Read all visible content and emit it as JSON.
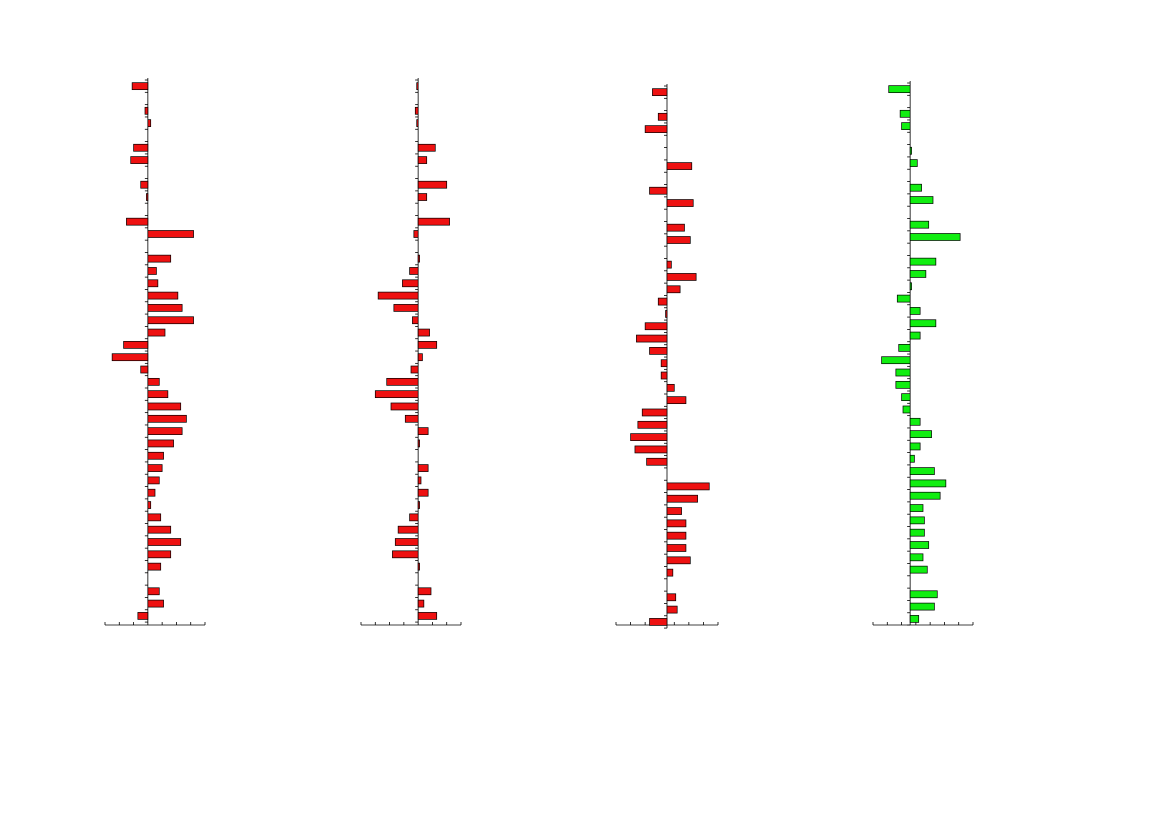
{
  "chart_data": [
    {
      "type": "bar",
      "orientation": "horizontal",
      "color": "#ee1111",
      "xlim": [
        -3,
        4
      ],
      "xticks": [
        -3,
        -2,
        -1,
        0,
        1,
        2,
        3,
        4
      ],
      "categories": [
        null,
        null,
        null,
        null,
        null,
        null,
        null,
        null,
        null,
        null,
        null,
        null,
        null,
        null,
        null,
        null,
        null,
        null,
        null,
        null,
        null,
        null,
        null,
        null,
        null,
        null,
        null,
        null,
        null,
        null,
        null,
        null,
        null,
        null,
        null,
        null,
        null,
        null,
        null,
        null,
        null,
        null,
        null,
        null
      ],
      "values": [
        -1.1,
        0,
        -0.2,
        0.2,
        0,
        -1.0,
        -1.2,
        0,
        -0.5,
        -0.1,
        0,
        -1.5,
        3.2,
        0,
        1.6,
        0.6,
        0.7,
        2.1,
        2.4,
        3.2,
        1.2,
        -1.7,
        -2.5,
        -0.5,
        0.8,
        1.4,
        2.3,
        2.7,
        2.4,
        1.8,
        1.1,
        1.0,
        0.8,
        0.5,
        0.2,
        0.9,
        1.6,
        2.3,
        1.6,
        0.9,
        0,
        0.8,
        1.1,
        -0.7
      ]
    },
    {
      "type": "bar",
      "orientation": "horizontal",
      "color": "#ee1111",
      "xlim": [
        -4,
        3
      ],
      "xticks": [
        -4,
        -3,
        -2,
        -1,
        0,
        1,
        2,
        3
      ],
      "categories": [
        null,
        null,
        null,
        null,
        null,
        null,
        null,
        null,
        null,
        null,
        null,
        null,
        null,
        null,
        null,
        null,
        null,
        null,
        null,
        null,
        null,
        null,
        null,
        null,
        null,
        null,
        null,
        null,
        null,
        null,
        null,
        null,
        null,
        null,
        null,
        null,
        null,
        null,
        null,
        null,
        null,
        null,
        null,
        null
      ],
      "values": [
        -0.1,
        0,
        -0.2,
        -0.1,
        0,
        1.2,
        0.6,
        0,
        2.0,
        0.6,
        0,
        2.2,
        -0.3,
        0,
        0.1,
        -0.6,
        -1.1,
        -2.8,
        -1.7,
        -0.4,
        0.8,
        1.3,
        0.3,
        -0.5,
        -2.2,
        -3.0,
        -1.9,
        -0.9,
        0.7,
        0.1,
        0,
        0.7,
        0.2,
        0.7,
        0.1,
        -0.6,
        -1.4,
        -1.6,
        -1.8,
        0.1,
        0,
        0.9,
        0.4,
        1.3
      ]
    },
    {
      "type": "bar",
      "orientation": "horizontal",
      "color": "#ee1111",
      "xlim": [
        -3.5,
        3.5
      ],
      "xticks": [
        -3.5,
        -2.5,
        -1.5,
        -0.5,
        0.5,
        1.5,
        2.5,
        3.5
      ],
      "categories": [
        null,
        null,
        null,
        null,
        null,
        null,
        null,
        null,
        null,
        null,
        null,
        null,
        null,
        null,
        null,
        null,
        null,
        null,
        null,
        null,
        null,
        null,
        null,
        null,
        null,
        null,
        null,
        null,
        null,
        null,
        null,
        null,
        null,
        null,
        null,
        null,
        null,
        null,
        null,
        null,
        null,
        null,
        null,
        null
      ],
      "values": [
        -1.0,
        0,
        -0.6,
        -1.5,
        0,
        0,
        1.7,
        0,
        -1.2,
        1.8,
        0,
        1.2,
        1.6,
        0,
        0.3,
        2.0,
        0.9,
        -0.6,
        -0.1,
        -1.5,
        -2.1,
        -1.2,
        -0.4,
        -0.4,
        0.5,
        1.3,
        -1.7,
        -2.0,
        -2.5,
        -2.2,
        -1.4,
        0,
        2.9,
        2.1,
        1.0,
        1.3,
        1.3,
        1.3,
        1.6,
        0.4,
        0,
        0.6,
        0.7,
        -1.2
      ]
    },
    {
      "type": "bar",
      "orientation": "horizontal",
      "color": "#11ee11",
      "xlim": [
        -2.6,
        4.4
      ],
      "xticks": [
        -2.6,
        -1.6,
        -0.6,
        0.4,
        1.4,
        2.4,
        3.4,
        4.4
      ],
      "categories": [
        null,
        null,
        null,
        null,
        null,
        null,
        null,
        null,
        null,
        null,
        null,
        null,
        null,
        null,
        null,
        null,
        null,
        null,
        null,
        null,
        null,
        null,
        null,
        null,
        null,
        null,
        null,
        null,
        null,
        null,
        null,
        null,
        null,
        null,
        null,
        null,
        null,
        null,
        null,
        null,
        null,
        null,
        null,
        null
      ],
      "values": [
        -1.5,
        0,
        -0.7,
        -0.6,
        0,
        0.1,
        0.5,
        0,
        0.8,
        1.6,
        0,
        1.3,
        3.5,
        0,
        1.8,
        1.1,
        0.1,
        -0.9,
        0.7,
        1.8,
        0.7,
        -0.8,
        -2.0,
        -1.0,
        -1.0,
        -0.6,
        -0.5,
        0.7,
        1.5,
        0.7,
        0.3,
        1.7,
        2.5,
        2.1,
        0.9,
        1.0,
        1.0,
        1.3,
        0.9,
        1.2,
        0,
        1.9,
        1.7,
        0.6
      ]
    }
  ]
}
